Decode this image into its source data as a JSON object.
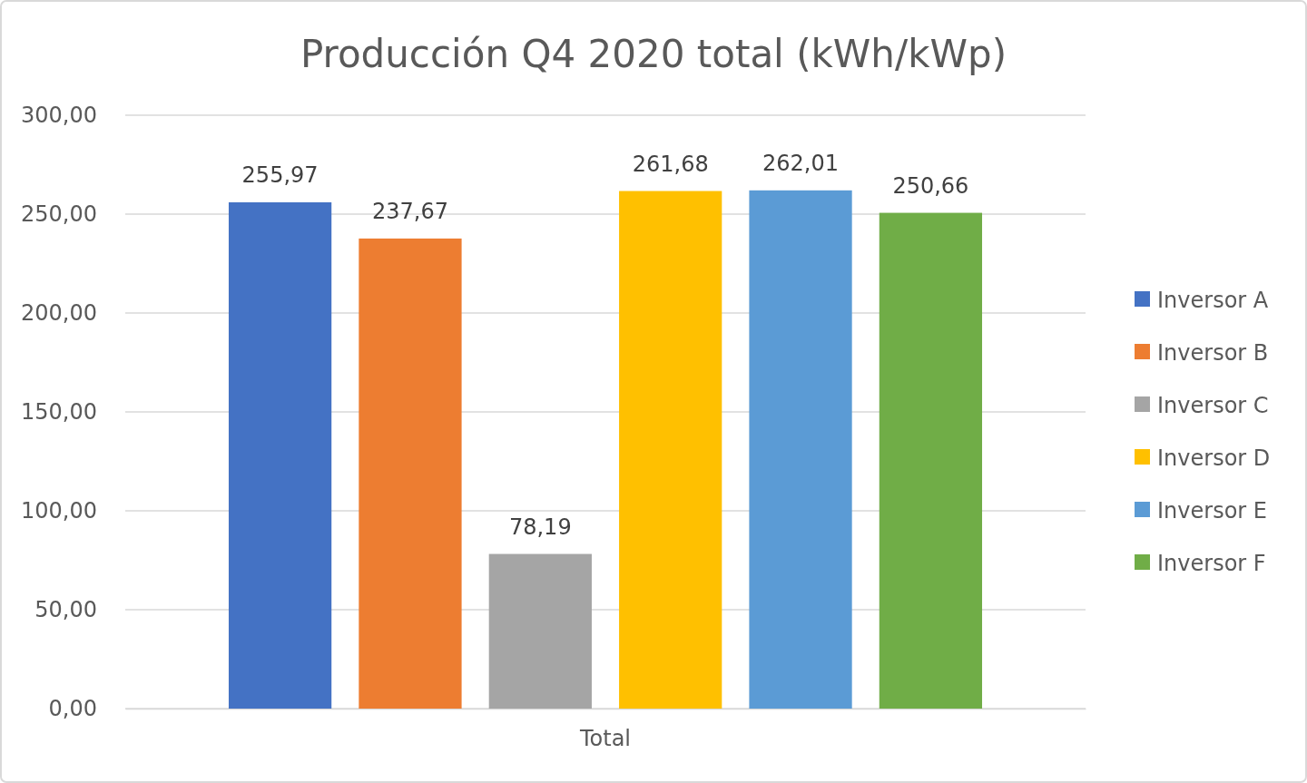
{
  "chart_data": {
    "type": "bar",
    "title": "Producción Q4 2020  total (kWh/kWp)",
    "categories": [
      "Total"
    ],
    "series": [
      {
        "name": "Inversor A",
        "color": "#4472c4",
        "values": [
          255.97
        ],
        "value_labels": [
          "255,97"
        ]
      },
      {
        "name": "Inversor B",
        "color": "#ed7d31",
        "values": [
          237.67
        ],
        "value_labels": [
          "237,67"
        ]
      },
      {
        "name": "Inversor C",
        "color": "#a5a5a5",
        "values": [
          78.19
        ],
        "value_labels": [
          "78,19"
        ]
      },
      {
        "name": "Inversor D",
        "color": "#ffc000",
        "values": [
          261.68
        ],
        "value_labels": [
          "261,68"
        ]
      },
      {
        "name": "Inversor E",
        "color": "#5b9bd5",
        "values": [
          262.01
        ],
        "value_labels": [
          "262,01"
        ]
      },
      {
        "name": "Inversor F",
        "color": "#70ad47",
        "values": [
          250.66
        ],
        "value_labels": [
          "250,66"
        ]
      }
    ],
    "ylim": [
      0,
      300
    ],
    "yticks": [
      {
        "value": 0,
        "label": "0,00"
      },
      {
        "value": 50,
        "label": "50,00"
      },
      {
        "value": 100,
        "label": "100,00"
      },
      {
        "value": 150,
        "label": "150,00"
      },
      {
        "value": 200,
        "label": "200,00"
      },
      {
        "value": 250,
        "label": "250,00"
      },
      {
        "value": 300,
        "label": "300,00"
      }
    ],
    "grid": "y",
    "legend": "right"
  }
}
